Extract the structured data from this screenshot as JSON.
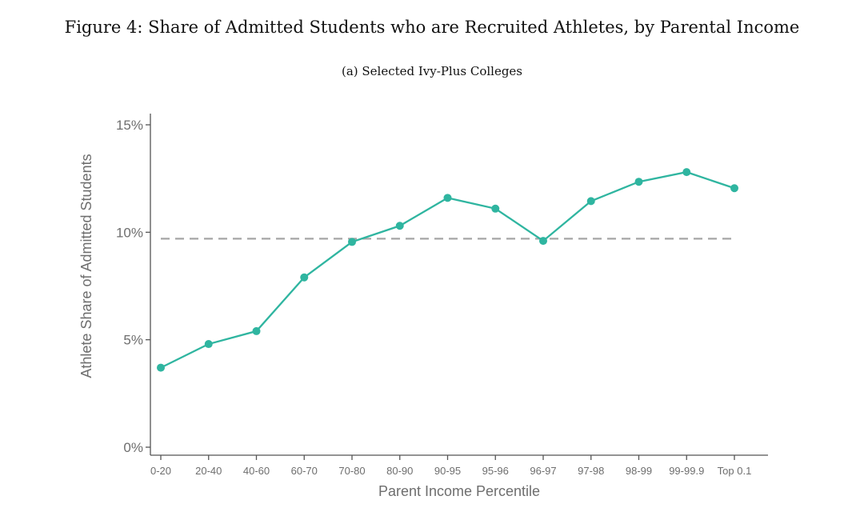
{
  "figure": {
    "title": "Figure 4: Share of Admitted Students who are Recruited Athletes, by Parental Income",
    "subtitle": "(a) Selected Ivy-Plus Colleges"
  },
  "chart_data": {
    "type": "line",
    "categories": [
      "0-20",
      "20-40",
      "40-60",
      "60-70",
      "70-80",
      "80-90",
      "90-95",
      "95-96",
      "96-97",
      "97-98",
      "98-99",
      "99-99.9",
      "Top 0.1"
    ],
    "series": [
      {
        "values": [
          3.7,
          4.8,
          5.4,
          7.9,
          9.55,
          10.3,
          11.6,
          11.1,
          9.6,
          11.45,
          12.35,
          12.8,
          12.05
        ],
        "color": "#2fb5a0"
      }
    ],
    "reference_line": {
      "value": 9.7,
      "style": "dashed",
      "color": "#a6a6a6"
    },
    "xlabel": "Parent Income Percentile",
    "ylabel": "Athlete Share of Admitted Students",
    "ylim": [
      0,
      15
    ],
    "yticks": [
      {
        "value": 0,
        "label": "0%"
      },
      {
        "value": 5,
        "label": "5%"
      },
      {
        "value": 10,
        "label": "10%"
      },
      {
        "value": 15,
        "label": "15%"
      }
    ],
    "grid": false,
    "legend": "none"
  }
}
